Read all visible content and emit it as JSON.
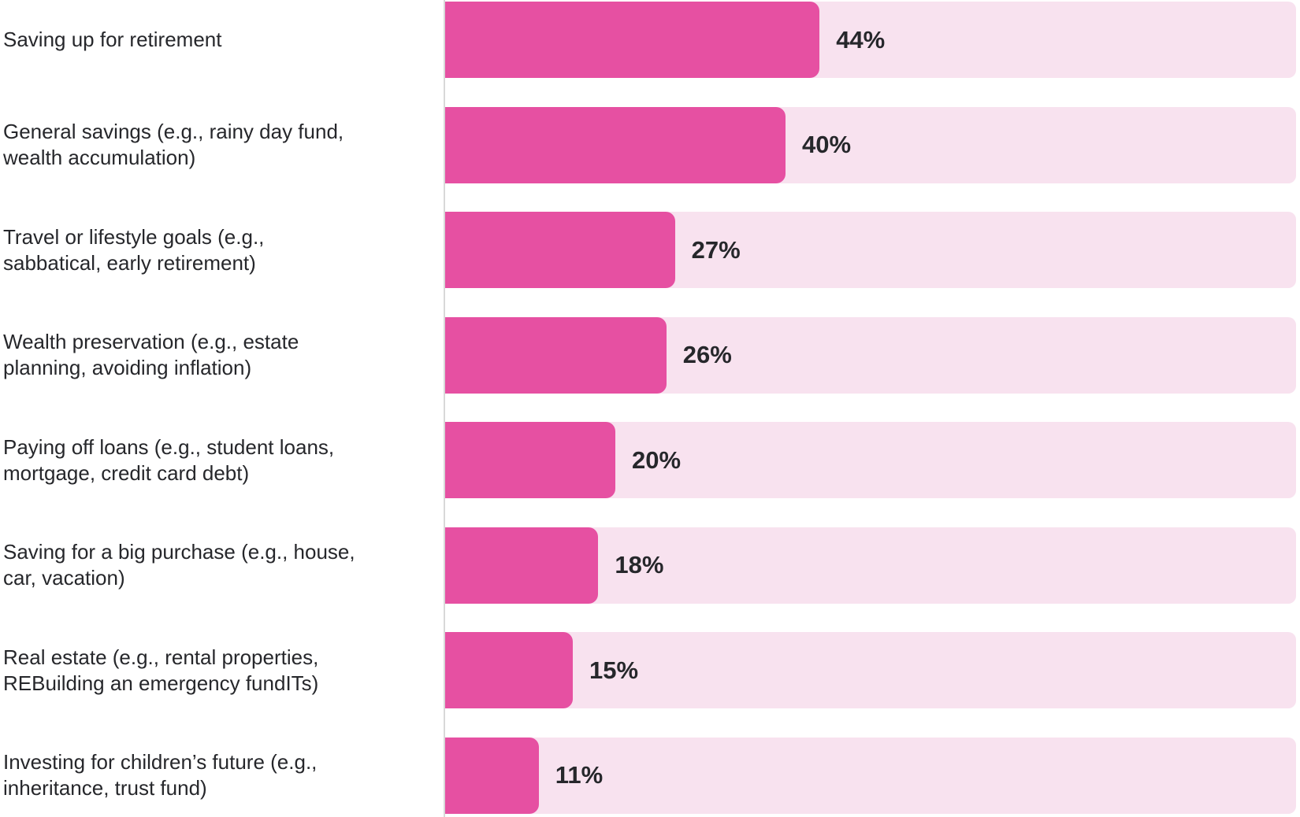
{
  "colors": {
    "bar": "#e650a2",
    "track": "#f8e2ef",
    "text": "#26272b",
    "axis_line": "#d8d8d8"
  },
  "chart_data": {
    "type": "bar",
    "orientation": "horizontal",
    "title": "",
    "xlabel": "",
    "ylabel": "",
    "xlim": [
      0,
      100
    ],
    "grid": false,
    "legend": false,
    "categories": [
      "Saving up for retirement",
      "General savings (e.g., rainy day fund,\nwealth accumulation)",
      "Travel or lifestyle goals (e.g.,\nsabbatical, early retirement)",
      "Wealth preservation (e.g., estate\nplanning, avoiding inflation)",
      "Paying off loans (e.g., student loans,\nmortgage, credit card debt)",
      "Saving for a big purchase (e.g., house,\ncar, vacation)",
      "Real estate (e.g., rental properties,\nREBuilding an emergency fundITs)",
      "Investing for children’s future (e.g.,\ninheritance, trust fund)"
    ],
    "values": [
      44,
      40,
      27,
      26,
      20,
      18,
      15,
      11
    ],
    "value_labels": [
      "44%",
      "40%",
      "27%",
      "26%",
      "20%",
      "18%",
      "15%",
      "11%"
    ]
  }
}
